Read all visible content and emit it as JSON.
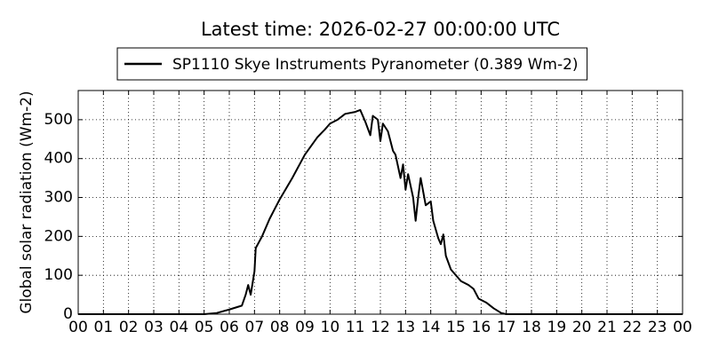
{
  "chart_data": {
    "type": "line",
    "title": "Latest time: 2026-02-27 00:00:00 UTC",
    "y_label": "Global solar radiation (Wm-2)",
    "x": [
      0,
      5.0,
      5.5,
      6.0,
      6.5,
      6.65,
      6.75,
      6.85,
      6.95,
      7.0,
      7.05,
      7.3,
      7.6,
      8.0,
      8.5,
      9.0,
      9.5,
      9.8,
      10.0,
      10.3,
      10.6,
      11.0,
      11.2,
      11.4,
      11.6,
      11.7,
      11.9,
      12.0,
      12.1,
      12.3,
      12.5,
      12.6,
      12.8,
      12.9,
      13.0,
      13.1,
      13.3,
      13.4,
      13.5,
      13.6,
      13.8,
      14.0,
      14.1,
      14.3,
      14.4,
      14.5,
      14.6,
      14.8,
      15.0,
      15.2,
      15.5,
      15.7,
      15.9,
      16.2,
      16.5,
      16.8,
      17.0,
      24
    ],
    "series": [
      {
        "name": "SP1110 Skye Instruments Pyranometer (0.389 Wm-2)",
        "color": "#000000",
        "values": [
          0,
          0,
          3,
          12,
          22,
          50,
          75,
          50,
          90,
          110,
          170,
          200,
          245,
          295,
          350,
          410,
          455,
          475,
          490,
          500,
          515,
          520,
          525,
          495,
          460,
          510,
          500,
          445,
          490,
          470,
          420,
          410,
          350,
          385,
          320,
          360,
          300,
          240,
          300,
          350,
          280,
          290,
          240,
          195,
          180,
          205,
          150,
          115,
          100,
          85,
          75,
          65,
          40,
          30,
          15,
          3,
          0,
          0
        ]
      }
    ],
    "xlim": [
      0,
      24
    ],
    "xticks": [
      {
        "value": 0,
        "label": "00"
      },
      {
        "value": 1,
        "label": "01"
      },
      {
        "value": 2,
        "label": "02"
      },
      {
        "value": 3,
        "label": "03"
      },
      {
        "value": 4,
        "label": "04"
      },
      {
        "value": 5,
        "label": "05"
      },
      {
        "value": 6,
        "label": "06"
      },
      {
        "value": 7,
        "label": "07"
      },
      {
        "value": 8,
        "label": "08"
      },
      {
        "value": 9,
        "label": "09"
      },
      {
        "value": 10,
        "label": "10"
      },
      {
        "value": 11,
        "label": "11"
      },
      {
        "value": 12,
        "label": "12"
      },
      {
        "value": 13,
        "label": "13"
      },
      {
        "value": 14,
        "label": "14"
      },
      {
        "value": 15,
        "label": "15"
      },
      {
        "value": 16,
        "label": "16"
      },
      {
        "value": 17,
        "label": "17"
      },
      {
        "value": 18,
        "label": "18"
      },
      {
        "value": 19,
        "label": "19"
      },
      {
        "value": 20,
        "label": "20"
      },
      {
        "value": 21,
        "label": "21"
      },
      {
        "value": 22,
        "label": "22"
      },
      {
        "value": 23,
        "label": "23"
      },
      {
        "value": 24,
        "label": "00"
      }
    ],
    "ylim": [
      0,
      575
    ],
    "yticks": [
      0,
      100,
      200,
      300,
      400,
      500
    ],
    "grid": true,
    "legend": "top"
  }
}
